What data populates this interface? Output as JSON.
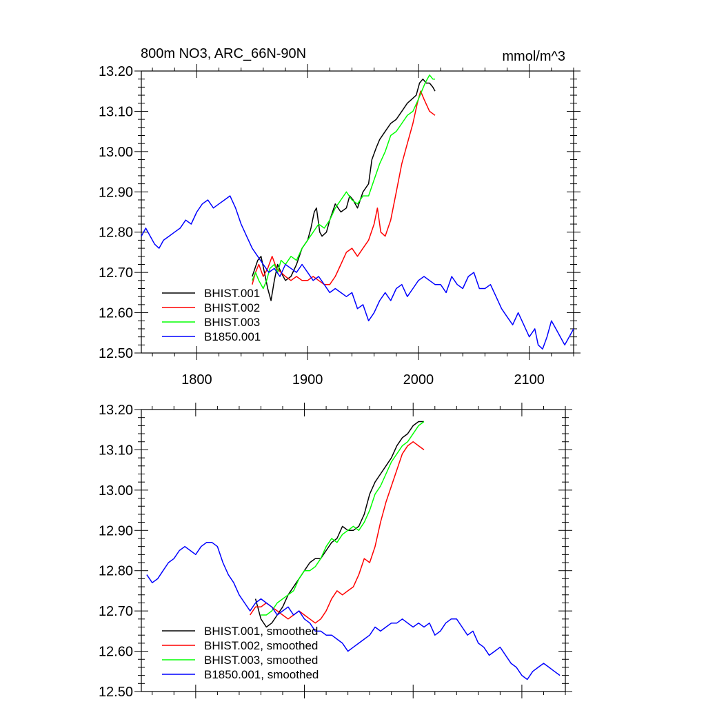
{
  "colors": {
    "BHIST.001": "#000000",
    "BHIST.002": "#ff0000",
    "BHIST.003": "#00ff00",
    "B1850.001": "#0000ff"
  },
  "chart_data": [
    {
      "type": "line",
      "title": "800m NO3, ARC_66N-90N",
      "units": "mmol/m^3",
      "xlim": [
        1750,
        2140
      ],
      "ylim": [
        12.5,
        13.2
      ],
      "xticks": [
        1800,
        1900,
        2000,
        2100
      ],
      "x_tick_labels": [
        "1800",
        "1900",
        "2000",
        "2100"
      ],
      "yticks": [
        12.5,
        12.6,
        12.7,
        12.8,
        12.9,
        13.0,
        13.1,
        13.2
      ],
      "y_tick_labels": [
        "12.50",
        "12.60",
        "12.70",
        "12.80",
        "12.90",
        "13.00",
        "13.10",
        "13.20"
      ],
      "legend_position": "bottom-left",
      "series": [
        {
          "name": "BHIST.001",
          "x": [
            1850,
            1855,
            1858,
            1861,
            1864,
            1867,
            1870,
            1873,
            1876,
            1880,
            1885,
            1890,
            1895,
            1900,
            1903,
            1906,
            1908,
            1911,
            1913,
            1917,
            1920,
            1925,
            1930,
            1935,
            1938,
            1941,
            1945,
            1950,
            1955,
            1958,
            1962,
            1965,
            1970,
            1975,
            1980,
            1985,
            1990,
            1994,
            1998,
            2001,
            2004,
            2007,
            2010,
            2013,
            2015
          ],
          "y": [
            12.69,
            12.73,
            12.74,
            12.7,
            12.66,
            12.63,
            12.68,
            12.72,
            12.7,
            12.68,
            12.69,
            12.72,
            12.76,
            12.78,
            12.81,
            12.85,
            12.86,
            12.8,
            12.79,
            12.8,
            12.83,
            12.87,
            12.85,
            12.86,
            12.89,
            12.88,
            12.86,
            12.9,
            12.92,
            12.98,
            13.01,
            13.03,
            13.05,
            13.07,
            13.08,
            13.1,
            13.12,
            13.13,
            13.14,
            13.17,
            13.18,
            13.17,
            13.17,
            13.16,
            13.15
          ]
        },
        {
          "name": "BHIST.002",
          "x": [
            1850,
            1853,
            1856,
            1860,
            1864,
            1868,
            1872,
            1876,
            1880,
            1885,
            1890,
            1895,
            1900,
            1905,
            1910,
            1915,
            1920,
            1925,
            1930,
            1935,
            1940,
            1945,
            1950,
            1955,
            1960,
            1963,
            1966,
            1970,
            1975,
            1980,
            1985,
            1990,
            1995,
            1999,
            2002,
            2005,
            2010,
            2015
          ],
          "y": [
            12.67,
            12.7,
            12.72,
            12.69,
            12.71,
            12.74,
            12.71,
            12.7,
            12.69,
            12.68,
            12.69,
            12.68,
            12.68,
            12.69,
            12.68,
            12.67,
            12.67,
            12.69,
            12.72,
            12.75,
            12.76,
            12.74,
            12.76,
            12.78,
            12.82,
            12.86,
            12.8,
            12.79,
            12.83,
            12.9,
            12.97,
            13.02,
            13.07,
            13.12,
            13.15,
            13.13,
            13.1,
            13.09
          ]
        },
        {
          "name": "BHIST.003",
          "x": [
            1850,
            1853,
            1856,
            1860,
            1863,
            1866,
            1870,
            1873,
            1876,
            1880,
            1885,
            1890,
            1895,
            1900,
            1905,
            1910,
            1915,
            1920,
            1925,
            1930,
            1935,
            1940,
            1945,
            1950,
            1955,
            1960,
            1965,
            1970,
            1975,
            1980,
            1985,
            1990,
            1995,
            2000,
            2003,
            2006,
            2010,
            2013,
            2015
          ],
          "y": [
            12.68,
            12.7,
            12.68,
            12.66,
            12.68,
            12.71,
            12.72,
            12.7,
            12.73,
            12.72,
            12.74,
            12.73,
            12.76,
            12.78,
            12.8,
            12.82,
            12.81,
            12.83,
            12.86,
            12.88,
            12.9,
            12.88,
            12.87,
            12.89,
            12.89,
            12.93,
            12.97,
            13.0,
            13.04,
            13.05,
            13.07,
            13.09,
            13.1,
            13.13,
            13.15,
            13.17,
            13.19,
            13.18,
            13.18
          ]
        },
        {
          "name": "B1850.001",
          "x": [
            1750,
            1754,
            1758,
            1762,
            1766,
            1770,
            1775,
            1780,
            1785,
            1790,
            1795,
            1800,
            1805,
            1810,
            1815,
            1820,
            1825,
            1830,
            1835,
            1840,
            1845,
            1850,
            1855,
            1860,
            1865,
            1870,
            1875,
            1880,
            1885,
            1890,
            1895,
            1900,
            1905,
            1910,
            1915,
            1920,
            1925,
            1930,
            1935,
            1940,
            1945,
            1950,
            1955,
            1960,
            1965,
            1970,
            1975,
            1980,
            1985,
            1990,
            1995,
            2000,
            2005,
            2010,
            2015,
            2020,
            2025,
            2030,
            2035,
            2040,
            2045,
            2050,
            2055,
            2060,
            2065,
            2070,
            2075,
            2080,
            2085,
            2090,
            2095,
            2100,
            2105,
            2108,
            2112,
            2116,
            2120,
            2124,
            2128,
            2132,
            2136,
            2140
          ],
          "y": [
            12.79,
            12.81,
            12.79,
            12.77,
            12.76,
            12.78,
            12.79,
            12.8,
            12.81,
            12.83,
            12.82,
            12.85,
            12.87,
            12.88,
            12.86,
            12.87,
            12.88,
            12.89,
            12.86,
            12.82,
            12.79,
            12.76,
            12.74,
            12.72,
            12.7,
            12.71,
            12.69,
            12.72,
            12.71,
            12.7,
            12.72,
            12.7,
            12.68,
            12.69,
            12.67,
            12.65,
            12.66,
            12.65,
            12.64,
            12.65,
            12.61,
            12.62,
            12.58,
            12.6,
            12.63,
            12.65,
            12.63,
            12.66,
            12.67,
            12.64,
            12.66,
            12.68,
            12.69,
            12.68,
            12.67,
            12.67,
            12.65,
            12.69,
            12.67,
            12.66,
            12.69,
            12.7,
            12.66,
            12.66,
            12.67,
            12.64,
            12.61,
            12.59,
            12.57,
            12.6,
            12.57,
            12.54,
            12.56,
            12.52,
            12.51,
            12.54,
            12.58,
            12.56,
            12.54,
            12.52,
            12.54,
            12.56
          ]
        }
      ]
    },
    {
      "type": "line",
      "xlim": [
        1750,
        2140
      ],
      "ylim": [
        12.5,
        13.2
      ],
      "xticks": [
        1800,
        1900,
        2000,
        2100
      ],
      "yticks": [
        12.5,
        12.6,
        12.7,
        12.8,
        12.9,
        13.0,
        13.1,
        13.2
      ],
      "y_tick_labels": [
        "12.50",
        "12.60",
        "12.70",
        "12.80",
        "12.90",
        "13.00",
        "13.10",
        "13.20"
      ],
      "legend_position": "bottom-left",
      "series": [
        {
          "name": "BHIST.001, smoothed",
          "x": [
            1855,
            1860,
            1865,
            1870,
            1875,
            1880,
            1885,
            1890,
            1895,
            1900,
            1905,
            1910,
            1915,
            1920,
            1925,
            1930,
            1935,
            1940,
            1945,
            1950,
            1955,
            1960,
            1965,
            1970,
            1975,
            1980,
            1985,
            1990,
            1995,
            2000,
            2005,
            2010
          ],
          "y": [
            12.73,
            12.68,
            12.66,
            12.67,
            12.69,
            12.71,
            12.74,
            12.76,
            12.78,
            12.8,
            12.82,
            12.83,
            12.83,
            12.85,
            12.87,
            12.88,
            12.91,
            12.9,
            12.9,
            12.91,
            12.94,
            12.99,
            13.02,
            13.04,
            13.06,
            13.08,
            13.11,
            13.13,
            13.14,
            13.16,
            13.17,
            13.17
          ]
        },
        {
          "name": "BHIST.002, smoothed",
          "x": [
            1850,
            1855,
            1860,
            1865,
            1870,
            1875,
            1880,
            1885,
            1890,
            1895,
            1900,
            1905,
            1910,
            1915,
            1920,
            1925,
            1930,
            1935,
            1940,
            1945,
            1950,
            1955,
            1960,
            1965,
            1970,
            1975,
            1980,
            1985,
            1990,
            1995,
            2000,
            2005,
            2010
          ],
          "y": [
            12.69,
            12.71,
            12.71,
            12.72,
            12.71,
            12.7,
            12.69,
            12.68,
            12.69,
            12.7,
            12.69,
            12.68,
            12.67,
            12.68,
            12.7,
            12.73,
            12.75,
            12.74,
            12.75,
            12.76,
            12.79,
            12.83,
            12.82,
            12.86,
            12.92,
            12.97,
            13.01,
            13.05,
            13.09,
            13.11,
            13.12,
            13.11,
            13.1
          ]
        },
        {
          "name": "BHIST.003, smoothed",
          "x": [
            1860,
            1865,
            1870,
            1875,
            1880,
            1885,
            1890,
            1895,
            1900,
            1905,
            1910,
            1915,
            1920,
            1925,
            1930,
            1935,
            1940,
            1945,
            1950,
            1955,
            1960,
            1965,
            1970,
            1975,
            1980,
            1985,
            1990,
            1995,
            2000,
            2005,
            2010
          ],
          "y": [
            12.69,
            12.69,
            12.7,
            12.72,
            12.73,
            12.74,
            12.75,
            12.78,
            12.8,
            12.8,
            12.81,
            12.83,
            12.86,
            12.88,
            12.87,
            12.89,
            12.9,
            12.91,
            12.9,
            12.92,
            12.95,
            12.99,
            13.01,
            13.04,
            13.07,
            13.09,
            13.11,
            13.12,
            13.14,
            13.16,
            13.17
          ]
        },
        {
          "name": "B1850.001, smoothed",
          "x": [
            1755,
            1760,
            1765,
            1770,
            1775,
            1780,
            1785,
            1790,
            1795,
            1800,
            1805,
            1810,
            1815,
            1820,
            1825,
            1830,
            1835,
            1840,
            1845,
            1850,
            1855,
            1860,
            1865,
            1870,
            1875,
            1880,
            1885,
            1890,
            1895,
            1900,
            1905,
            1910,
            1915,
            1920,
            1925,
            1930,
            1935,
            1940,
            1945,
            1950,
            1955,
            1960,
            1965,
            1970,
            1975,
            1980,
            1985,
            1990,
            1995,
            2000,
            2005,
            2010,
            2015,
            2020,
            2025,
            2030,
            2035,
            2040,
            2045,
            2050,
            2055,
            2060,
            2065,
            2070,
            2075,
            2080,
            2085,
            2090,
            2095,
            2100,
            2105,
            2110,
            2115,
            2120,
            2125,
            2130,
            2135
          ],
          "y": [
            12.79,
            12.77,
            12.78,
            12.8,
            12.82,
            12.83,
            12.85,
            12.86,
            12.85,
            12.84,
            12.86,
            12.87,
            12.87,
            12.86,
            12.82,
            12.79,
            12.77,
            12.74,
            12.72,
            12.7,
            12.72,
            12.73,
            12.72,
            12.71,
            12.69,
            12.7,
            12.71,
            12.69,
            12.7,
            12.68,
            12.67,
            12.65,
            12.65,
            12.64,
            12.64,
            12.63,
            12.62,
            12.6,
            12.61,
            12.62,
            12.63,
            12.64,
            12.66,
            12.65,
            12.66,
            12.67,
            12.67,
            12.68,
            12.67,
            12.66,
            12.67,
            12.66,
            12.67,
            12.64,
            12.65,
            12.67,
            12.68,
            12.68,
            12.66,
            12.64,
            12.65,
            12.62,
            12.61,
            12.59,
            12.6,
            12.61,
            12.59,
            12.57,
            12.56,
            12.54,
            12.53,
            12.55,
            12.56,
            12.57,
            12.56,
            12.55,
            12.54
          ]
        }
      ]
    }
  ]
}
